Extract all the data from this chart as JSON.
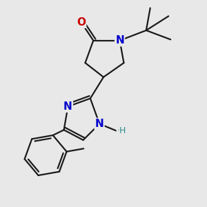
{
  "background_color": "#e8e8e8",
  "bond_color": "#1a1a1a",
  "N_color": "#0000cc",
  "O_color": "#cc0000",
  "H_color": "#2d8c8c",
  "font_size_atom": 10,
  "line_width": 1.6,
  "xlim": [
    0,
    10
  ],
  "ylim": [
    0,
    10
  ]
}
